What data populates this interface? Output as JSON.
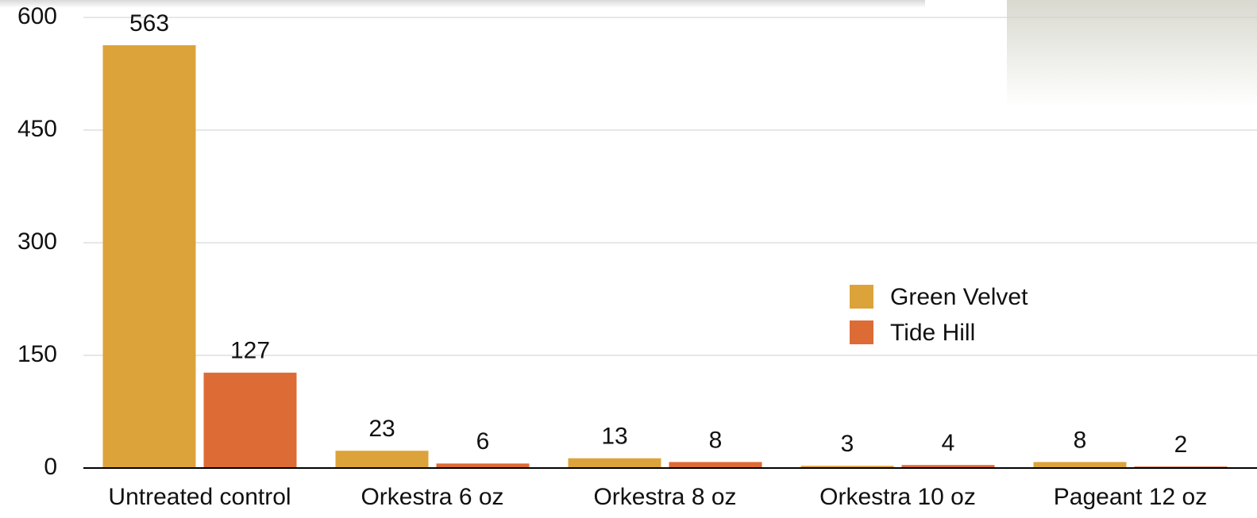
{
  "chart_data": {
    "type": "bar",
    "categories": [
      "Untreated control",
      "Orkestra 6 oz",
      "Orkestra 8 oz",
      "Orkestra 10 oz",
      "Pageant 12 oz"
    ],
    "series": [
      {
        "name": "Green Velvet",
        "color": "#dca33a",
        "values": [
          563,
          23,
          13,
          3,
          8
        ]
      },
      {
        "name": "Tide Hill",
        "color": "#dd6b36",
        "values": [
          127,
          6,
          8,
          4,
          2
        ]
      }
    ],
    "ylim": [
      0,
      600
    ],
    "yticks": [
      0,
      150,
      300,
      450,
      600
    ],
    "grid": true,
    "legend": true
  }
}
